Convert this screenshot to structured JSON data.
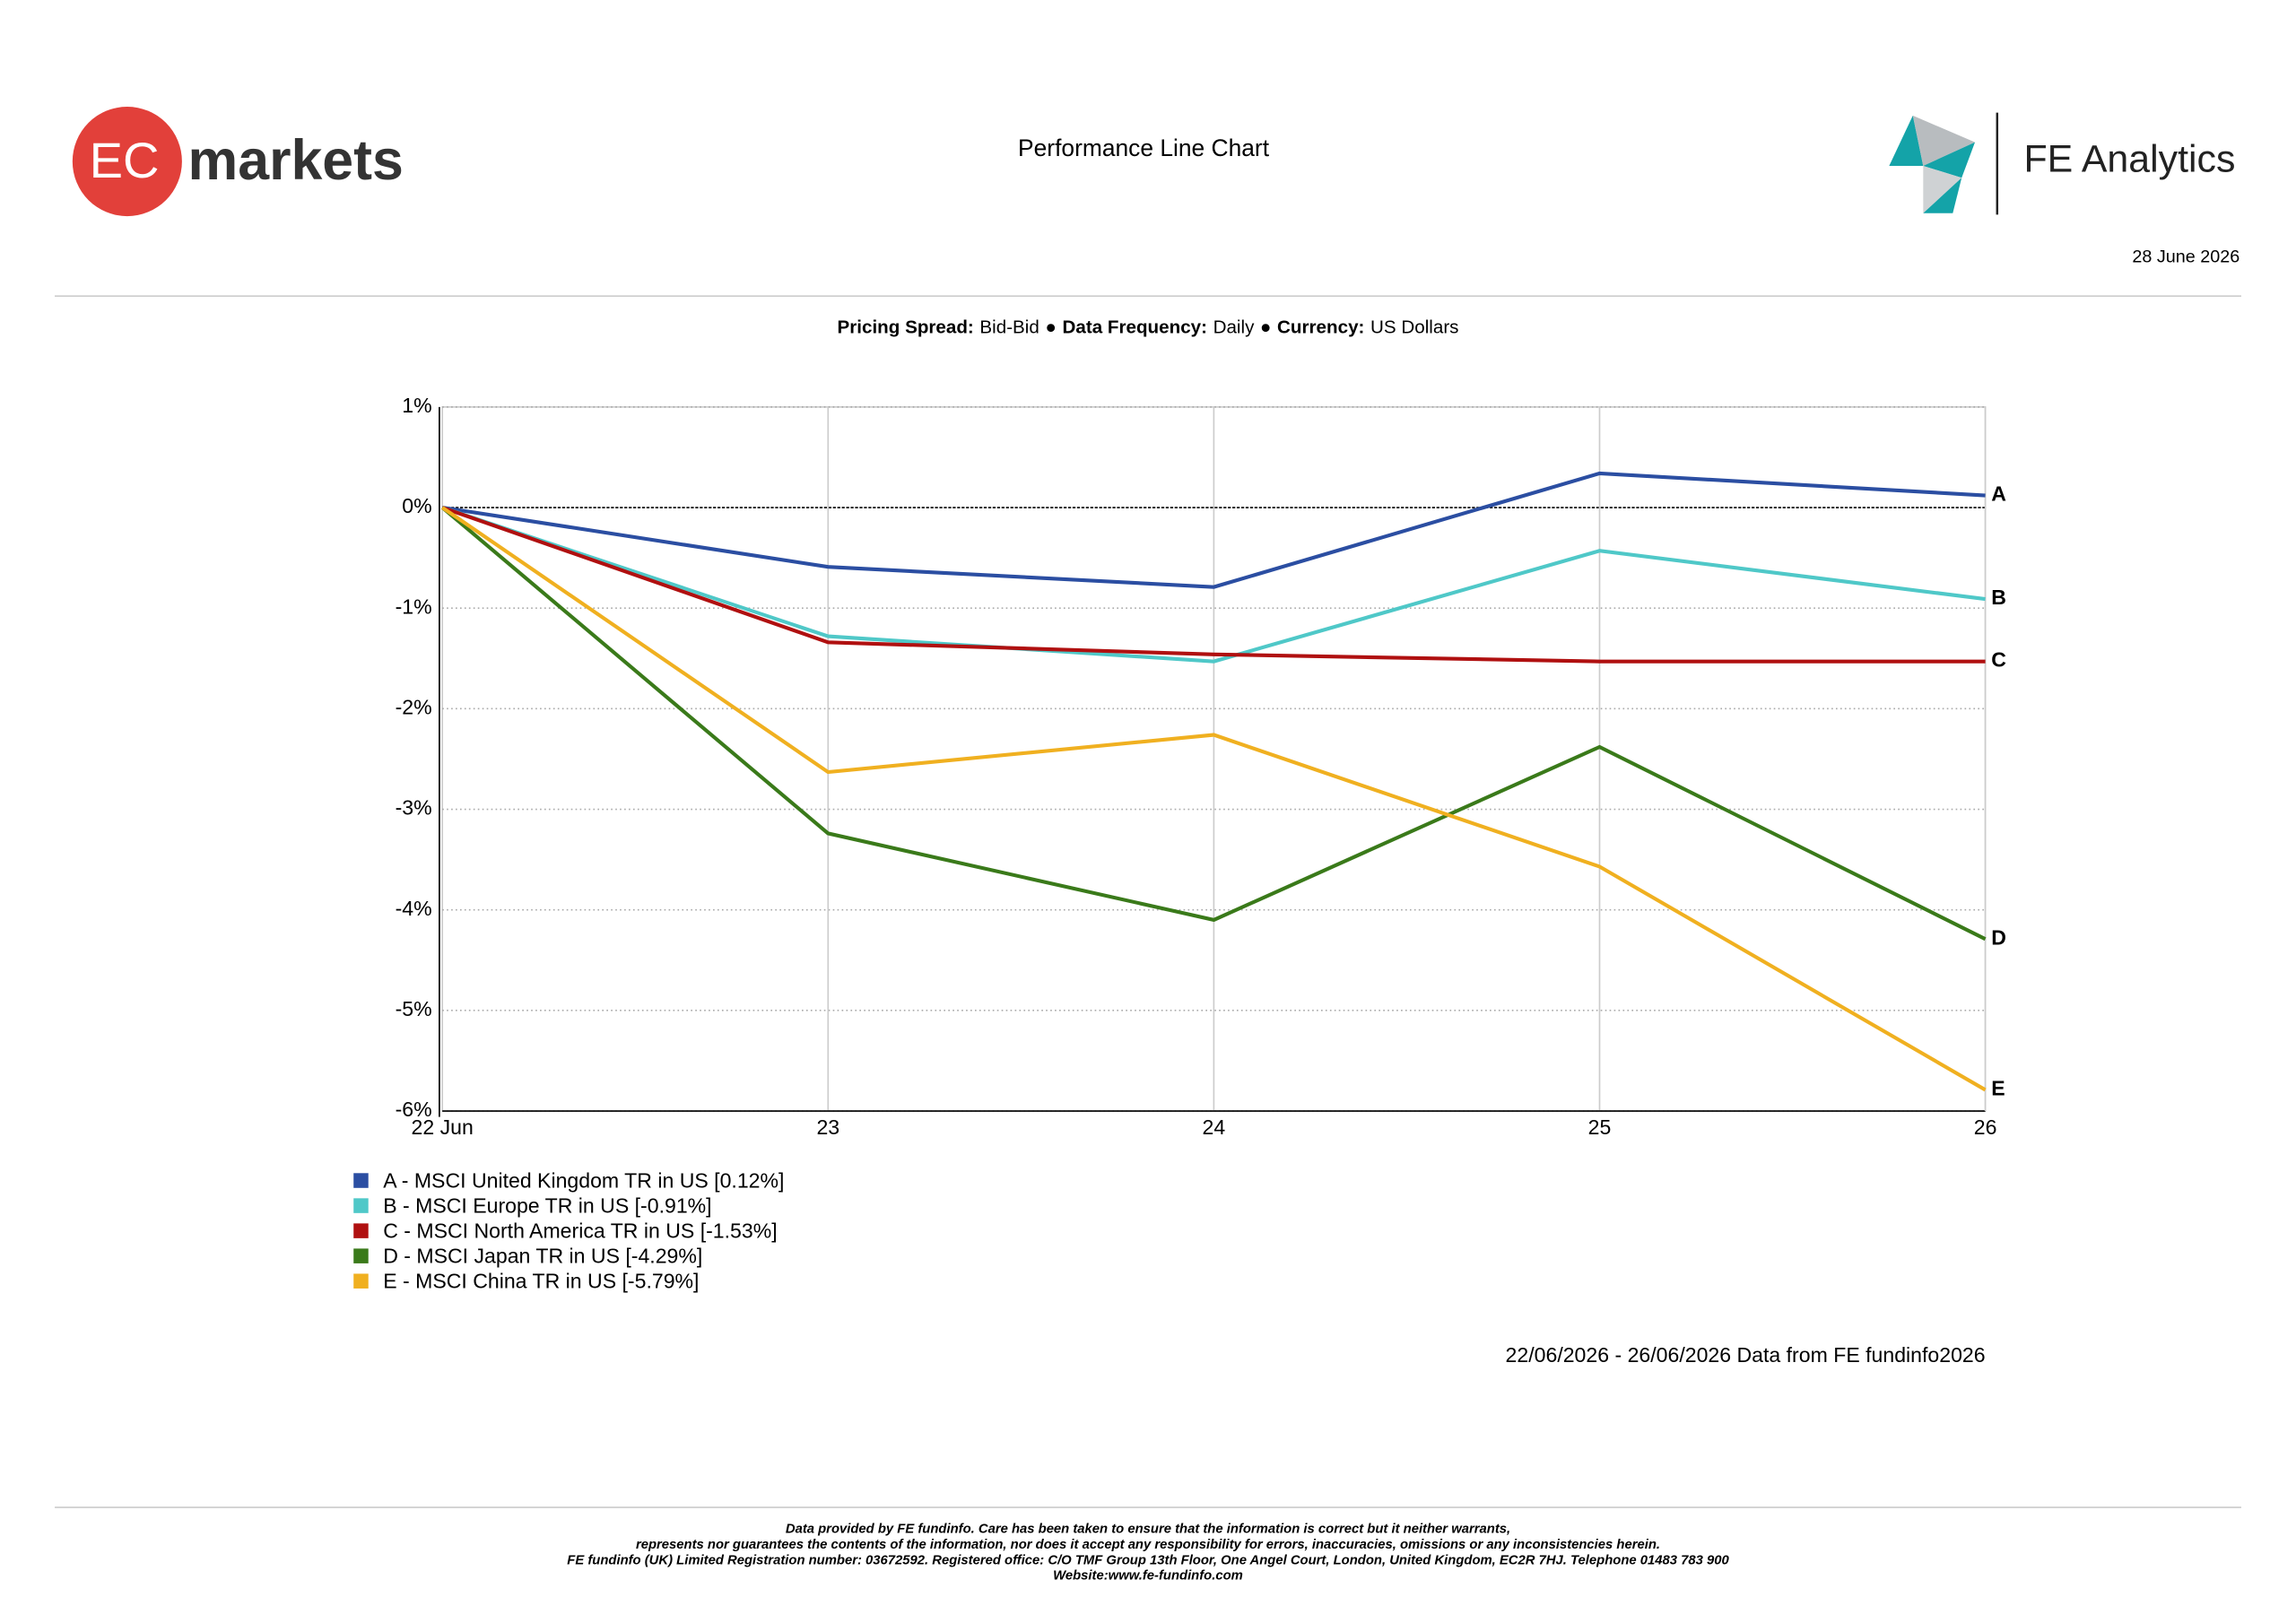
{
  "header": {
    "logo_left_mark": "EC",
    "logo_left_text": "markets",
    "title": "Performance Line Chart",
    "logo_right_text": "FE Analytics",
    "date": "28 June 2026"
  },
  "settings": {
    "parts": [
      {
        "label": "Pricing Spread:",
        "value": "Bid-Bid"
      },
      {
        "label": "Data Frequency:",
        "value": "Daily"
      },
      {
        "label": "Currency:",
        "value": "US Dollars"
      }
    ],
    "separator": "●"
  },
  "chart_data": {
    "type": "line",
    "categories": [
      "22 Jun",
      "23",
      "24",
      "25",
      "26"
    ],
    "ylim": [
      -6,
      1
    ],
    "yticks": [
      {
        "value": 1,
        "label": "1%"
      },
      {
        "value": 0,
        "label": "0%"
      },
      {
        "value": -1,
        "label": "-1%"
      },
      {
        "value": -2,
        "label": "-2%"
      },
      {
        "value": -3,
        "label": "-3%"
      },
      {
        "value": -4,
        "label": "-4%"
      },
      {
        "value": -5,
        "label": "-5%"
      },
      {
        "value": -6,
        "label": "-6%"
      }
    ],
    "grid": true,
    "series": [
      {
        "name": "A - MSCI United Kingdom TR in US [0.12%]",
        "end_label": "A",
        "color": "#2b4ea2",
        "values": [
          0,
          -0.59,
          -0.79,
          0.34,
          0.12
        ]
      },
      {
        "name": "B - MSCI Europe TR in US [-0.91%]",
        "end_label": "B",
        "color": "#4fc8c8",
        "values": [
          0,
          -1.28,
          -1.53,
          -0.43,
          -0.91
        ]
      },
      {
        "name": "C - MSCI North America TR in US [-1.53%]",
        "end_label": "C",
        "color": "#b01010",
        "values": [
          0,
          -1.34,
          -1.46,
          -1.53,
          -1.53
        ]
      },
      {
        "name": "D - MSCI Japan TR in US [-4.29%]",
        "end_label": "D",
        "color": "#3a7a1a",
        "values": [
          0,
          -3.24,
          -4.1,
          -2.38,
          -4.29
        ]
      },
      {
        "name": "E - MSCI China TR in US [-5.79%]",
        "end_label": "E",
        "color": "#f0b020",
        "values": [
          0,
          -2.63,
          -2.26,
          -3.57,
          -5.79
        ]
      }
    ],
    "source": "22/06/2026 - 26/06/2026 Data from FE fundinfo2026"
  },
  "footer": {
    "lines": [
      "Data provided by FE fundinfo. Care has been taken to ensure that the information is correct but it neither warrants,",
      "represents nor guarantees the contents of the information, nor does it accept any responsibility for errors, inaccuracies, omissions or any inconsistencies herein.",
      "FE fundinfo (UK) Limited Registration number: 03672592. Registered office: C/O TMF Group 13th Floor, One Angel Court, London, United Kingdom, EC2R 7HJ. Telephone 01483 783 900",
      "Website:www.fe-fundinfo.com"
    ]
  }
}
